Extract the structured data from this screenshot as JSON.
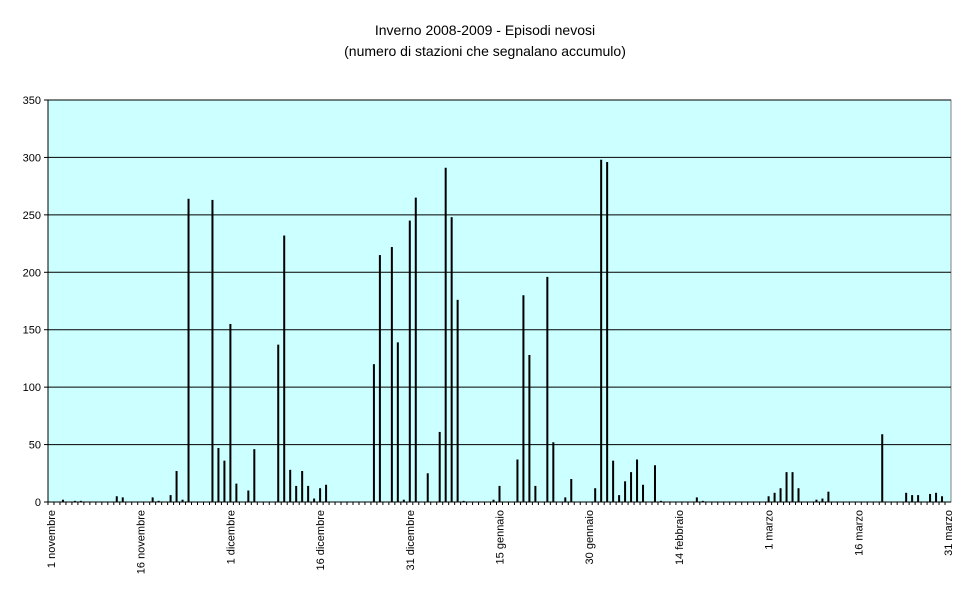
{
  "chart_data": {
    "type": "bar",
    "title": "Inverno 2008-2009 - Episodi nevosi",
    "subtitle": "(numero di stazioni che segnalano accumulo)",
    "color": "#000000",
    "background": "#ccffff",
    "grid": true,
    "ylim": [
      0,
      350
    ],
    "yticks": [
      0,
      50,
      100,
      150,
      200,
      250,
      300,
      350
    ],
    "categories": [
      "1 novembre",
      null,
      null,
      null,
      null,
      null,
      null,
      null,
      null,
      null,
      null,
      null,
      null,
      null,
      null,
      "16 novembre",
      null,
      null,
      null,
      null,
      null,
      null,
      null,
      null,
      null,
      null,
      null,
      null,
      null,
      null,
      "1 dicembre",
      null,
      null,
      null,
      null,
      null,
      null,
      null,
      null,
      null,
      null,
      null,
      null,
      null,
      null,
      "16 dicembre",
      null,
      null,
      null,
      null,
      null,
      null,
      null,
      null,
      null,
      null,
      null,
      null,
      null,
      null,
      "31 dicembre",
      null,
      null,
      null,
      null,
      null,
      null,
      null,
      null,
      null,
      null,
      null,
      null,
      null,
      null,
      "15 gennaio",
      null,
      null,
      null,
      null,
      null,
      null,
      null,
      null,
      null,
      null,
      null,
      null,
      null,
      null,
      "30 gennaio",
      null,
      null,
      null,
      null,
      null,
      null,
      null,
      null,
      null,
      null,
      null,
      null,
      null,
      null,
      "14 febbraio",
      null,
      null,
      null,
      null,
      null,
      null,
      null,
      null,
      null,
      null,
      null,
      null,
      null,
      null,
      "1 marzo",
      null,
      null,
      null,
      null,
      null,
      null,
      null,
      null,
      null,
      null,
      null,
      null,
      null,
      null,
      "16 marzo",
      null,
      null,
      null,
      null,
      null,
      null,
      null,
      null,
      null,
      null,
      null,
      null,
      null,
      null,
      "31 marzo"
    ],
    "values": [
      0,
      0,
      2,
      0,
      1,
      1,
      0,
      0,
      0,
      0,
      0,
      5,
      4,
      0,
      0,
      0,
      0,
      4,
      1,
      0,
      6,
      27,
      2,
      264,
      0,
      0,
      0,
      263,
      47,
      36,
      155,
      16,
      0,
      10,
      46,
      0,
      0,
      0,
      137,
      232,
      28,
      14,
      27,
      14,
      3,
      12,
      15,
      0,
      0,
      0,
      0,
      0,
      0,
      0,
      120,
      215,
      0,
      222,
      139,
      2,
      245,
      265,
      0,
      25,
      0,
      61,
      291,
      248,
      176,
      1,
      0,
      0,
      0,
      0,
      2,
      14,
      0,
      0,
      37,
      180,
      128,
      14,
      0,
      196,
      52,
      0,
      4,
      20,
      0,
      0,
      0,
      12,
      298,
      296,
      36,
      6,
      18,
      26,
      37,
      15,
      0,
      32,
      1,
      0,
      0,
      0,
      0,
      0,
      4,
      1,
      0,
      0,
      0,
      0,
      0,
      0,
      0,
      0,
      0,
      0,
      5,
      8,
      12,
      26,
      26,
      12,
      0,
      0,
      2,
      3,
      9,
      0,
      0,
      0,
      0,
      0,
      0,
      0,
      0,
      59,
      0,
      0,
      0,
      8,
      6,
      6,
      0,
      7,
      8,
      5,
      0
    ]
  }
}
